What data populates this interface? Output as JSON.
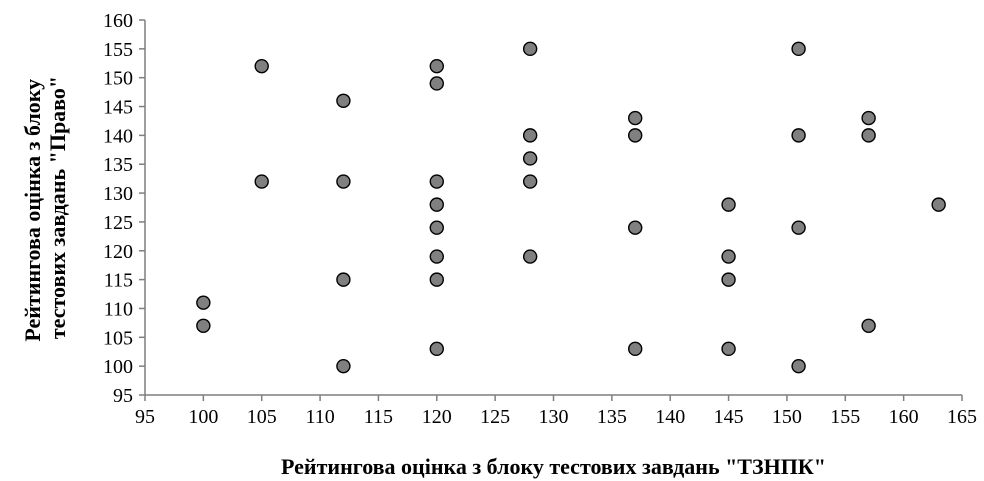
{
  "chart_data": {
    "type": "scatter",
    "xlabel": "Рейтингова оцінка з блоку тестових завдань \"ТЗНПК\"",
    "ylabel_lines": [
      "Рейтингова оцінка з блоку",
      "тестових завдань \"Право\""
    ],
    "xlim": [
      95,
      165
    ],
    "ylim": [
      95,
      160
    ],
    "xticks": [
      95,
      100,
      105,
      110,
      115,
      120,
      125,
      130,
      135,
      140,
      145,
      150,
      155,
      160,
      165
    ],
    "yticks": [
      95,
      100,
      105,
      110,
      115,
      120,
      125,
      130,
      135,
      140,
      145,
      150,
      155,
      160
    ],
    "grid": false,
    "points": [
      {
        "x": 100,
        "y": 111
      },
      {
        "x": 100,
        "y": 107
      },
      {
        "x": 105,
        "y": 152
      },
      {
        "x": 105,
        "y": 132
      },
      {
        "x": 112,
        "y": 146
      },
      {
        "x": 112,
        "y": 132
      },
      {
        "x": 112,
        "y": 115
      },
      {
        "x": 112,
        "y": 100
      },
      {
        "x": 120,
        "y": 152
      },
      {
        "x": 120,
        "y": 149
      },
      {
        "x": 120,
        "y": 132
      },
      {
        "x": 120,
        "y": 128
      },
      {
        "x": 120,
        "y": 124
      },
      {
        "x": 120,
        "y": 119
      },
      {
        "x": 120,
        "y": 115
      },
      {
        "x": 120,
        "y": 103
      },
      {
        "x": 128,
        "y": 155
      },
      {
        "x": 128,
        "y": 140
      },
      {
        "x": 128,
        "y": 136
      },
      {
        "x": 128,
        "y": 132
      },
      {
        "x": 128,
        "y": 119
      },
      {
        "x": 137,
        "y": 143
      },
      {
        "x": 137,
        "y": 140
      },
      {
        "x": 137,
        "y": 124
      },
      {
        "x": 137,
        "y": 103
      },
      {
        "x": 145,
        "y": 128
      },
      {
        "x": 145,
        "y": 119
      },
      {
        "x": 145,
        "y": 115
      },
      {
        "x": 145,
        "y": 103
      },
      {
        "x": 151,
        "y": 155
      },
      {
        "x": 151,
        "y": 140
      },
      {
        "x": 151,
        "y": 124
      },
      {
        "x": 151,
        "y": 100
      },
      {
        "x": 157,
        "y": 143
      },
      {
        "x": 157,
        "y": 140
      },
      {
        "x": 157,
        "y": 107
      },
      {
        "x": 163,
        "y": 128
      }
    ]
  }
}
